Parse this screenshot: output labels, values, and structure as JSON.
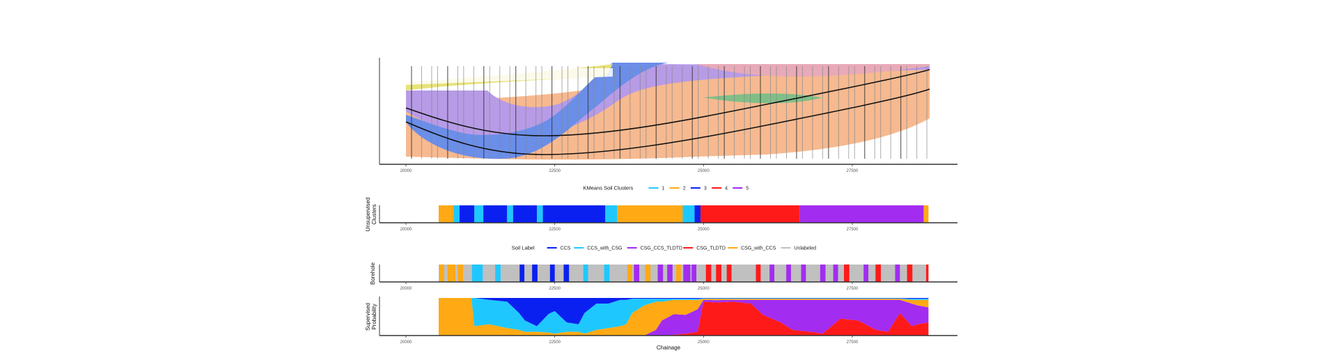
{
  "chart_data": [
    {
      "type": "heatmap",
      "title": "",
      "description": "Geological long-section image with borehole logs and tunnel alignment",
      "xlabel": "",
      "ylabel": "",
      "xlim": [
        19100,
        28900
      ],
      "xticks": [
        20000,
        22500,
        25000,
        27500
      ],
      "xtick_labels": [
        "20000",
        "22500",
        "25000",
        "27500"
      ],
      "image_extent": [
        20000,
        28800
      ],
      "layer_colors": {
        "fill": "#f7b98f",
        "blue": "#6b8ee8",
        "lavender": "#b79be6",
        "yellow": "#e8e27a",
        "green": "#7fbf87",
        "pink": "#e8aab8"
      }
    },
    {
      "type": "bar",
      "name": "unsupervised-clusters",
      "ylabel": "Unsupervised\nClusters",
      "legend_title": "KMeans Soil Clusters",
      "legend_position": "top",
      "legend": [
        {
          "label": "1",
          "color": "#1ec8ff"
        },
        {
          "label": "2",
          "color": "#ffa914"
        },
        {
          "label": "3",
          "color": "#0a20f0"
        },
        {
          "label": "4",
          "color": "#ff1a1a"
        },
        {
          "label": "5",
          "color": "#a22cf0"
        }
      ],
      "xticks": [
        20000,
        22500,
        25000,
        27500
      ],
      "xtick_labels": [
        "20000",
        "22500",
        "25000",
        "27500"
      ],
      "xlim": [
        19600,
        29400
      ],
      "segments": [
        {
          "from": 20550,
          "to": 20800,
          "cluster": "2"
        },
        {
          "from": 20800,
          "to": 20900,
          "cluster": "1"
        },
        {
          "from": 20900,
          "to": 21150,
          "cluster": "3"
        },
        {
          "from": 21150,
          "to": 21300,
          "cluster": "1"
        },
        {
          "from": 21300,
          "to": 21700,
          "cluster": "3"
        },
        {
          "from": 21700,
          "to": 21800,
          "cluster": "1"
        },
        {
          "from": 21800,
          "to": 22200,
          "cluster": "3"
        },
        {
          "from": 22200,
          "to": 22300,
          "cluster": "1"
        },
        {
          "from": 22300,
          "to": 23350,
          "cluster": "3"
        },
        {
          "from": 23350,
          "to": 23550,
          "cluster": "1"
        },
        {
          "from": 23550,
          "to": 24650,
          "cluster": "2"
        },
        {
          "from": 24650,
          "to": 24850,
          "cluster": "1"
        },
        {
          "from": 24850,
          "to": 24950,
          "cluster": "3"
        },
        {
          "from": 24950,
          "to": 26620,
          "cluster": "4"
        },
        {
          "from": 26620,
          "to": 28700,
          "cluster": "5"
        },
        {
          "from": 28700,
          "to": 28780,
          "cluster": "2"
        }
      ]
    },
    {
      "type": "bar",
      "name": "borehole",
      "ylabel": "Borehole",
      "legend_title": "Soil Label",
      "legend_position": "top",
      "legend": [
        {
          "label": "CCS",
          "color": "#0a20f0"
        },
        {
          "label": "CCS_with_CSG",
          "color": "#1ec8ff"
        },
        {
          "label": "CSG_CCS_TLDTD",
          "color": "#a22cf0"
        },
        {
          "label": "CSG_TLDTD",
          "color": "#ff1a1a"
        },
        {
          "label": "CSG_with_CCS",
          "color": "#ffa914"
        },
        {
          "label": "Unlabeled",
          "color": "#c0c0c0"
        }
      ],
      "xticks": [
        20000,
        22500,
        25000,
        27500
      ],
      "xtick_labels": [
        "20000",
        "22500",
        "25000",
        "27500"
      ],
      "xlim": [
        19600,
        29400
      ],
      "background_label": "Unlabeled",
      "range": [
        20550,
        28780
      ],
      "segments": [
        {
          "from": 20560,
          "to": 20640,
          "label": "CSG_with_CCS"
        },
        {
          "from": 20700,
          "to": 20830,
          "label": "CSG_with_CCS"
        },
        {
          "from": 20870,
          "to": 20960,
          "label": "CSG_with_CCS"
        },
        {
          "from": 21110,
          "to": 21290,
          "label": "CCS_with_CSG"
        },
        {
          "from": 21500,
          "to": 21590,
          "label": "CCS_with_CSG"
        },
        {
          "from": 21910,
          "to": 21990,
          "label": "CCS"
        },
        {
          "from": 22120,
          "to": 22210,
          "label": "CCS"
        },
        {
          "from": 22420,
          "to": 22500,
          "label": "CCS"
        },
        {
          "from": 22650,
          "to": 22740,
          "label": "CCS"
        },
        {
          "from": 22980,
          "to": 23060,
          "label": "CCS_with_CSG"
        },
        {
          "from": 23330,
          "to": 23420,
          "label": "CCS_with_CSG"
        },
        {
          "from": 23720,
          "to": 23800,
          "label": "CSG_with_CCS"
        },
        {
          "from": 23830,
          "to": 23920,
          "label": "CSG_CCS_TLDTD"
        },
        {
          "from": 24020,
          "to": 24110,
          "label": "CSG_with_CCS"
        },
        {
          "from": 24230,
          "to": 24320,
          "label": "CSG_CCS_TLDTD"
        },
        {
          "from": 24390,
          "to": 24480,
          "label": "CSG_CCS_TLDTD"
        },
        {
          "from": 24540,
          "to": 24620,
          "label": "CSG_with_CCS"
        },
        {
          "from": 24660,
          "to": 24780,
          "label": "CSG_CCS_TLDTD"
        },
        {
          "from": 24800,
          "to": 24880,
          "label": "CSG_CCS_TLDTD"
        },
        {
          "from": 25040,
          "to": 25130,
          "label": "CSG_TLDTD"
        },
        {
          "from": 25210,
          "to": 25300,
          "label": "CSG_TLDTD"
        },
        {
          "from": 25390,
          "to": 25470,
          "label": "CSG_TLDTD"
        },
        {
          "from": 25880,
          "to": 25960,
          "label": "CSG_TLDTD"
        },
        {
          "from": 26110,
          "to": 26190,
          "label": "CSG_CCS_TLDTD"
        },
        {
          "from": 26390,
          "to": 26470,
          "label": "CSG_CCS_TLDTD"
        },
        {
          "from": 26640,
          "to": 26720,
          "label": "CSG_CCS_TLDTD"
        },
        {
          "from": 26960,
          "to": 27050,
          "label": "CSG_CCS_TLDTD"
        },
        {
          "from": 27180,
          "to": 27260,
          "label": "CSG_CCS_TLDTD"
        },
        {
          "from": 27360,
          "to": 27450,
          "label": "CSG_TLDTD"
        },
        {
          "from": 27690,
          "to": 27770,
          "label": "CSG_CCS_TLDTD"
        },
        {
          "from": 27890,
          "to": 27980,
          "label": "CSG_TLDTD"
        },
        {
          "from": 28220,
          "to": 28300,
          "label": "CSG_CCS_TLDTD"
        },
        {
          "": "",
          "from": 28420,
          "to": 28510,
          "label": "CSG_TLDTD"
        },
        {
          "from": 28740,
          "to": 28780,
          "label": "CSG_TLDTD"
        }
      ]
    },
    {
      "type": "area",
      "name": "supervised-probability",
      "ylabel": "Supervised\nProbability",
      "xlabel": "Chainage",
      "xticks": [
        20000,
        22500,
        25000,
        27500
      ],
      "xtick_labels": [
        "20000",
        "22500",
        "25000",
        "27500"
      ],
      "xlim": [
        19600,
        29400
      ],
      "ylim": [
        0,
        1
      ],
      "stack_order": [
        "CSG_TLDTD",
        "CSG_CCS_TLDTD",
        "CSG_with_CCS",
        "CCS_with_CSG",
        "CCS"
      ],
      "x": [
        20550,
        20800,
        21100,
        21150,
        21400,
        21700,
        21900,
        22000,
        22200,
        22400,
        22500,
        22700,
        22900,
        23000,
        23200,
        23400,
        23600,
        23700,
        23800,
        24000,
        24200,
        24300,
        24500,
        24700,
        24900,
        25000,
        25200,
        25500,
        25800,
        26000,
        26300,
        26500,
        26800,
        27000,
        27300,
        27600,
        27900,
        28100,
        28300,
        28500,
        28600,
        28780
      ],
      "series": [
        {
          "name": "CSG_TLDTD",
          "values": [
            0,
            0,
            0,
            0,
            0,
            0,
            0,
            0,
            0,
            0,
            0,
            0,
            0,
            0,
            0,
            0,
            0,
            0,
            0,
            0,
            0,
            0,
            0.02,
            0.05,
            0.1,
            0.9,
            0.88,
            0.9,
            0.85,
            0.55,
            0.35,
            0.15,
            0.1,
            0.05,
            0.45,
            0.4,
            0.15,
            0.1,
            0.6,
            0.25,
            0.3,
            0.35
          ]
        },
        {
          "name": "CSG_CCS_TLDTD",
          "values": [
            0,
            0,
            0,
            0,
            0,
            0,
            0,
            0,
            0,
            0,
            0,
            0,
            0,
            0,
            0,
            0,
            0,
            0,
            0,
            0,
            0.15,
            0.4,
            0.55,
            0.5,
            0.6,
            0.05,
            0.06,
            0.05,
            0.1,
            0.4,
            0.6,
            0.8,
            0.85,
            0.9,
            0.5,
            0.55,
            0.8,
            0.85,
            0.35,
            0.6,
            0.5,
            0.4
          ]
        },
        {
          "name": "CSG_with_CCS",
          "values": [
            1,
            1,
            1,
            0.25,
            0.3,
            0.2,
            0.15,
            0.1,
            0.1,
            0.08,
            0.05,
            0.1,
            0.1,
            0.05,
            0.15,
            0.2,
            0.25,
            0.3,
            0.6,
            0.8,
            0.75,
            0.5,
            0.38,
            0.4,
            0.25,
            0.03,
            0.04,
            0.03,
            0.03,
            0.03,
            0.03,
            0.03,
            0.03,
            0.03,
            0.03,
            0.03,
            0.03,
            0.03,
            0.03,
            0.1,
            0.15,
            0.2
          ]
        },
        {
          "name": "CCS_with_CSG",
          "values": [
            0,
            0,
            0,
            0.75,
            0.65,
            0.7,
            0.45,
            0.3,
            0.15,
            0.5,
            0.6,
            0.25,
            0.2,
            0.55,
            0.7,
            0.65,
            0.7,
            0.65,
            0.38,
            0.18,
            0.08,
            0.08,
            0.03,
            0.03,
            0.03,
            0.01,
            0.01,
            0.01,
            0.01,
            0.01,
            0.01,
            0.01,
            0.01,
            0.01,
            0.01,
            0.01,
            0.01,
            0.01,
            0.01,
            0.03,
            0.03,
            0.03
          ]
        },
        {
          "name": "CCS",
          "values": [
            0,
            0,
            0,
            0,
            0.05,
            0.1,
            0.4,
            0.6,
            0.75,
            0.42,
            0.35,
            0.65,
            0.7,
            0.4,
            0.15,
            0.15,
            0.05,
            0.05,
            0.02,
            0.02,
            0.02,
            0.02,
            0.02,
            0.02,
            0.02,
            0.01,
            0.01,
            0.01,
            0.01,
            0.01,
            0.01,
            0.01,
            0.01,
            0.01,
            0.01,
            0.01,
            0.01,
            0.01,
            0.01,
            0.02,
            0.02,
            0.02
          ]
        }
      ]
    }
  ],
  "colors": {
    "CCS": "#0a20f0",
    "CCS_with_CSG": "#1ec8ff",
    "CSG_CCS_TLDTD": "#a22cf0",
    "CSG_TLDTD": "#ff1a1a",
    "CSG_with_CCS": "#ffa914",
    "Unlabeled": "#c0c0c0",
    "1": "#1ec8ff",
    "2": "#ffa914",
    "3": "#0a20f0",
    "4": "#ff1a1a",
    "5": "#a22cf0"
  }
}
